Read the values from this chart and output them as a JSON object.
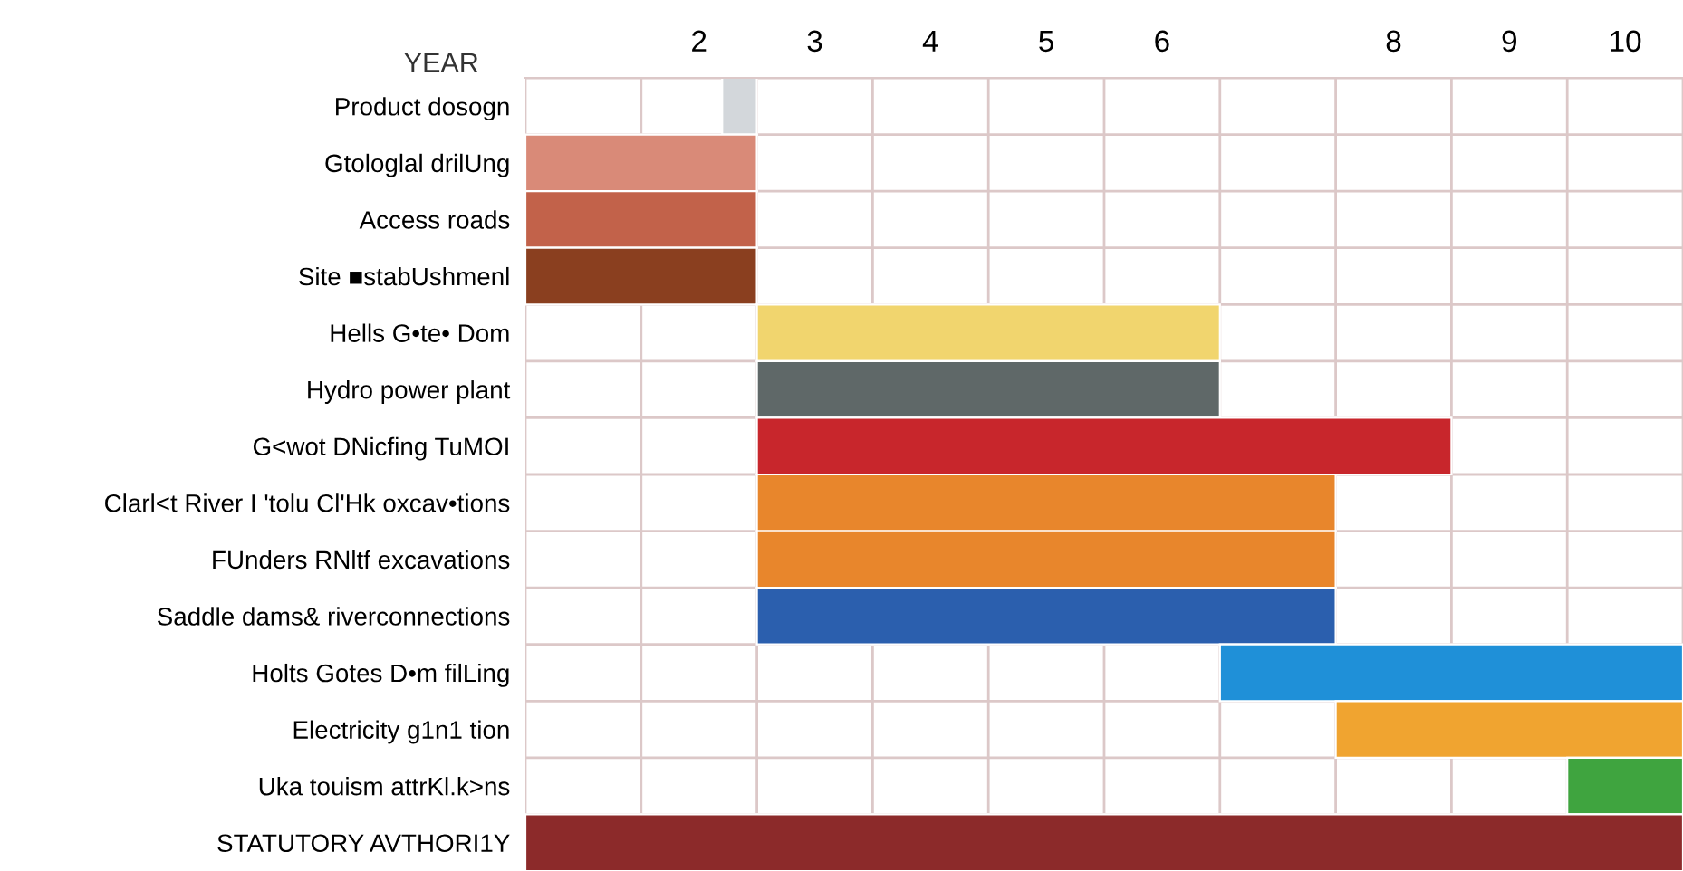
{
  "chart_data": {
    "type": "bar",
    "orientation": "horizontal",
    "xlabel": "YEAR",
    "categories": [
      "Product dosogn",
      "Gtologlal drilUng",
      "Access roads",
      "Site ■stabUshmenl",
      "Hells G•te• Dom",
      "Hydro power plant",
      "G<wot DNicfing TuMOI",
      "Clarl<t River I 'tolu Cl'Hk oxcav•tions",
      "FUnders RNltf excavations",
      "Saddle dams& riverconnections",
      "Holts Gotes D•m filLing",
      "Electricity g1n1 tion",
      "Uka touism attrKl.k>ns",
      "STATUTORY AVTHORI1Y"
    ],
    "base": [
      1.7,
      0,
      0,
      0,
      2,
      2,
      2,
      2,
      2,
      2,
      6,
      7,
      9,
      0
    ],
    "values": [
      0.3,
      2,
      2,
      2,
      4,
      4,
      6,
      5,
      5,
      5,
      4,
      3,
      1,
      10
    ],
    "colors": [
      "#d3d7db",
      "#d98a78",
      "#c2624a",
      "#8a3f1f",
      "#f1d56e",
      "#5f6868",
      "#c8262c",
      "#e8862c",
      "#e8862c",
      "#2b5fae",
      "#1f90d8",
      "#f0a430",
      "#3fa43f",
      "#8c2a2a"
    ],
    "xlim": [
      0,
      10
    ],
    "xticks": [
      {
        "value": 0,
        "label": null
      },
      {
        "value": 1,
        "label": null
      },
      {
        "value": 1.5,
        "label": "2"
      },
      {
        "value": 2,
        "label": null
      },
      {
        "value": 2.5,
        "label": "3"
      },
      {
        "value": 3,
        "label": null
      },
      {
        "value": 3.5,
        "label": "4"
      },
      {
        "value": 4,
        "label": null
      },
      {
        "value": 4.5,
        "label": "5"
      },
      {
        "value": 5,
        "label": null
      },
      {
        "value": 5.5,
        "label": "6"
      },
      {
        "value": 6,
        "label": null
      },
      {
        "value": 7,
        "label": null
      },
      {
        "value": 7.5,
        "label": "8"
      },
      {
        "value": 8,
        "label": null
      },
      {
        "value": 8.5,
        "label": "9"
      },
      {
        "value": 9,
        "label": null
      },
      {
        "value": 9.5,
        "label": "10"
      },
      {
        "value": 10,
        "label": null
      }
    ],
    "grid": true
  }
}
